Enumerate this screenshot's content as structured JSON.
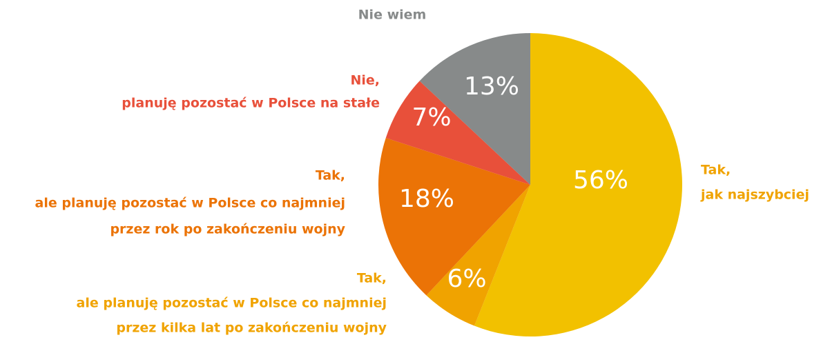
{
  "chart_data": {
    "type": "pie",
    "categories": [
      [
        "Tak,",
        "jak najszybciej"
      ],
      [
        "Tak,",
        "ale planuję pozostać w Polsce co najmniej",
        "przez kilka lat po zakończeniu wojny"
      ],
      [
        "Tak,",
        "ale planuję pozostać w Polsce co najmniej",
        "przez rok po zakończeniu wojny"
      ],
      [
        "Nie,",
        "planuję pozostać w Polsce na stałe"
      ],
      [
        "Nie wiem"
      ]
    ],
    "values": [
      56,
      6,
      18,
      7,
      13
    ],
    "value_labels": [
      "56%",
      "6%",
      "18%",
      "7%",
      "13%"
    ],
    "colors": [
      "#f2c100",
      "#f0a300",
      "#eb7306",
      "#e8503a",
      "#878a8a"
    ],
    "label_colors": [
      "#f0a300",
      "#f0a300",
      "#eb7306",
      "#e8503a",
      "#878a8a"
    ]
  }
}
